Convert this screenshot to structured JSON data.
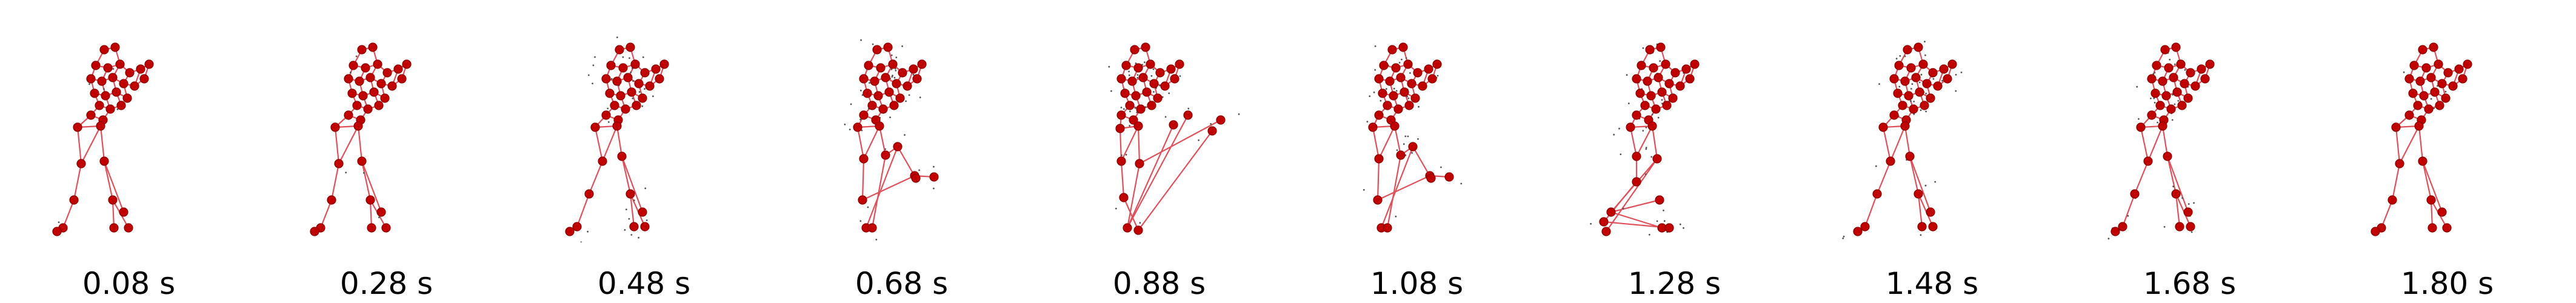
{
  "frames": [
    {
      "time_label": "0.08 s",
      "pose": "standing"
    },
    {
      "time_label": "0.28 s",
      "pose": "standing"
    },
    {
      "time_label": "0.48 s",
      "pose": "stepping"
    },
    {
      "time_label": "0.68 s",
      "pose": "knee-raise"
    },
    {
      "time_label": "0.88 s",
      "pose": "arm-extend"
    },
    {
      "time_label": "1.08 s",
      "pose": "knee-raise"
    },
    {
      "time_label": "1.28 s",
      "pose": "leg-back"
    },
    {
      "time_label": "1.48 s",
      "pose": "stepping"
    },
    {
      "time_label": "1.68 s",
      "pose": "stepping"
    },
    {
      "time_label": "1.80 s",
      "pose": "standing"
    }
  ],
  "colors": {
    "joint": "#c00000",
    "joint_edge": "#8b0000",
    "bone": "#e0505a",
    "noise": "#555555"
  }
}
